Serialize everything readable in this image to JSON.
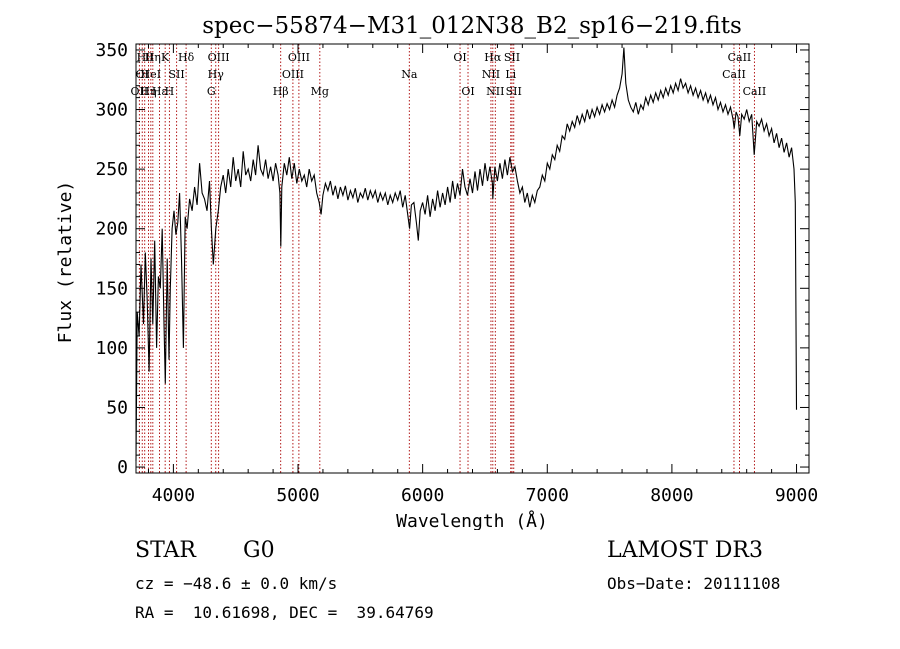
{
  "chart_data": {
    "type": "line",
    "title": "spec−55874−M31_012N38_B2_sp16−219.fits",
    "xlabel": "Wavelength (Å)",
    "ylabel": "Flux (relative)",
    "xlim": [
      3700,
      9100
    ],
    "ylim": [
      -5,
      355
    ],
    "xticks": [
      4000,
      5000,
      6000,
      7000,
      8000,
      9000
    ],
    "yticks": [
      0,
      50,
      100,
      150,
      200,
      250,
      300,
      350
    ],
    "series": [
      {
        "name": "spectrum",
        "color": "#000000",
        "points": [
          [
            3700,
            5
          ],
          [
            3710,
            130
          ],
          [
            3725,
            110
          ],
          [
            3740,
            170
          ],
          [
            3760,
            120
          ],
          [
            3775,
            180
          ],
          [
            3790,
            140
          ],
          [
            3805,
            80
          ],
          [
            3820,
            175
          ],
          [
            3835,
            120
          ],
          [
            3850,
            190
          ],
          [
            3865,
            100
          ],
          [
            3880,
            160
          ],
          [
            3895,
            150
          ],
          [
            3910,
            200
          ],
          [
            3925,
            120
          ],
          [
            3935,
            70
          ],
          [
            3950,
            175
          ],
          [
            3965,
            90
          ],
          [
            3975,
            150
          ],
          [
            3990,
            200
          ],
          [
            4005,
            215
          ],
          [
            4020,
            195
          ],
          [
            4035,
            205
          ],
          [
            4050,
            230
          ],
          [
            4065,
            175
          ],
          [
            4080,
            100
          ],
          [
            4095,
            210
          ],
          [
            4110,
            200
          ],
          [
            4130,
            225
          ],
          [
            4150,
            215
          ],
          [
            4170,
            235
          ],
          [
            4190,
            220
          ],
          [
            4210,
            255
          ],
          [
            4230,
            230
          ],
          [
            4250,
            225
          ],
          [
            4270,
            215
          ],
          [
            4290,
            240
          ],
          [
            4305,
            200
          ],
          [
            4320,
            170
          ],
          [
            4340,
            200
          ],
          [
            4360,
            215
          ],
          [
            4380,
            235
          ],
          [
            4400,
            245
          ],
          [
            4420,
            230
          ],
          [
            4440,
            250
          ],
          [
            4460,
            235
          ],
          [
            4480,
            260
          ],
          [
            4500,
            240
          ],
          [
            4520,
            250
          ],
          [
            4540,
            235
          ],
          [
            4560,
            265
          ],
          [
            4580,
            245
          ],
          [
            4600,
            250
          ],
          [
            4620,
            240
          ],
          [
            4640,
            258
          ],
          [
            4660,
            245
          ],
          [
            4680,
            270
          ],
          [
            4700,
            250
          ],
          [
            4720,
            245
          ],
          [
            4740,
            258
          ],
          [
            4760,
            242
          ],
          [
            4780,
            252
          ],
          [
            4800,
            240
          ],
          [
            4820,
            255
          ],
          [
            4840,
            245
          ],
          [
            4855,
            230
          ],
          [
            4862,
            185
          ],
          [
            4870,
            235
          ],
          [
            4890,
            255
          ],
          [
            4910,
            245
          ],
          [
            4930,
            260
          ],
          [
            4950,
            242
          ],
          [
            4970,
            255
          ],
          [
            4990,
            238
          ],
          [
            5010,
            250
          ],
          [
            5030,
            240
          ],
          [
            5050,
            245
          ],
          [
            5070,
            235
          ],
          [
            5090,
            250
          ],
          [
            5110,
            240
          ],
          [
            5130,
            245
          ],
          [
            5150,
            230
          ],
          [
            5170,
            222
          ],
          [
            5185,
            212
          ],
          [
            5200,
            228
          ],
          [
            5220,
            238
          ],
          [
            5240,
            232
          ],
          [
            5260,
            240
          ],
          [
            5280,
            228
          ],
          [
            5300,
            236
          ],
          [
            5320,
            225
          ],
          [
            5340,
            235
          ],
          [
            5360,
            228
          ],
          [
            5380,
            236
          ],
          [
            5400,
            224
          ],
          [
            5420,
            232
          ],
          [
            5440,
            226
          ],
          [
            5460,
            234
          ],
          [
            5480,
            222
          ],
          [
            5500,
            230
          ],
          [
            5520,
            226
          ],
          [
            5540,
            234
          ],
          [
            5560,
            224
          ],
          [
            5580,
            232
          ],
          [
            5600,
            226
          ],
          [
            5620,
            232
          ],
          [
            5640,
            222
          ],
          [
            5660,
            230
          ],
          [
            5680,
            224
          ],
          [
            5700,
            230
          ],
          [
            5720,
            220
          ],
          [
            5740,
            228
          ],
          [
            5760,
            222
          ],
          [
            5780,
            230
          ],
          [
            5800,
            224
          ],
          [
            5820,
            232
          ],
          [
            5840,
            218
          ],
          [
            5860,
            228
          ],
          [
            5880,
            212
          ],
          [
            5895,
            200
          ],
          [
            5910,
            220
          ],
          [
            5930,
            222
          ],
          [
            5950,
            205
          ],
          [
            5965,
            190
          ],
          [
            5980,
            215
          ],
          [
            6000,
            222
          ],
          [
            6020,
            212
          ],
          [
            6040,
            228
          ],
          [
            6060,
            210
          ],
          [
            6080,
            225
          ],
          [
            6100,
            215
          ],
          [
            6120,
            232
          ],
          [
            6140,
            218
          ],
          [
            6160,
            230
          ],
          [
            6180,
            220
          ],
          [
            6200,
            235
          ],
          [
            6220,
            222
          ],
          [
            6240,
            240
          ],
          [
            6260,
            225
          ],
          [
            6280,
            238
          ],
          [
            6300,
            228
          ],
          [
            6320,
            250
          ],
          [
            6340,
            235
          ],
          [
            6360,
            228
          ],
          [
            6380,
            242
          ],
          [
            6400,
            230
          ],
          [
            6420,
            248
          ],
          [
            6440,
            232
          ],
          [
            6460,
            250
          ],
          [
            6480,
            236
          ],
          [
            6500,
            255
          ],
          [
            6520,
            240
          ],
          [
            6540,
            252
          ],
          [
            6560,
            238
          ],
          [
            6563,
            225
          ],
          [
            6580,
            252
          ],
          [
            6600,
            240
          ],
          [
            6620,
            255
          ],
          [
            6640,
            242
          ],
          [
            6660,
            258
          ],
          [
            6680,
            245
          ],
          [
            6700,
            260
          ],
          [
            6720,
            248
          ],
          [
            6740,
            252
          ],
          [
            6760,
            240
          ],
          [
            6780,
            230
          ],
          [
            6800,
            235
          ],
          [
            6820,
            222
          ],
          [
            6840,
            230
          ],
          [
            6860,
            218
          ],
          [
            6880,
            228
          ],
          [
            6900,
            222
          ],
          [
            6920,
            232
          ],
          [
            6940,
            235
          ],
          [
            6960,
            245
          ],
          [
            6980,
            240
          ],
          [
            7000,
            255
          ],
          [
            7020,
            250
          ],
          [
            7040,
            262
          ],
          [
            7060,
            258
          ],
          [
            7080,
            270
          ],
          [
            7100,
            265
          ],
          [
            7120,
            278
          ],
          [
            7140,
            275
          ],
          [
            7160,
            288
          ],
          [
            7180,
            282
          ],
          [
            7200,
            290
          ],
          [
            7220,
            285
          ],
          [
            7240,
            295
          ],
          [
            7260,
            288
          ],
          [
            7280,
            296
          ],
          [
            7300,
            290
          ],
          [
            7320,
            300
          ],
          [
            7340,
            292
          ],
          [
            7360,
            300
          ],
          [
            7380,
            294
          ],
          [
            7400,
            302
          ],
          [
            7420,
            296
          ],
          [
            7440,
            304
          ],
          [
            7460,
            298
          ],
          [
            7480,
            305
          ],
          [
            7500,
            300
          ],
          [
            7520,
            308
          ],
          [
            7540,
            302
          ],
          [
            7560,
            312
          ],
          [
            7580,
            318
          ],
          [
            7600,
            330
          ],
          [
            7615,
            352
          ],
          [
            7630,
            322
          ],
          [
            7650,
            308
          ],
          [
            7670,
            302
          ],
          [
            7690,
            298
          ],
          [
            7710,
            306
          ],
          [
            7730,
            296
          ],
          [
            7750,
            304
          ],
          [
            7770,
            300
          ],
          [
            7790,
            310
          ],
          [
            7810,
            304
          ],
          [
            7830,
            312
          ],
          [
            7850,
            306
          ],
          [
            7870,
            314
          ],
          [
            7890,
            308
          ],
          [
            7910,
            316
          ],
          [
            7930,
            310
          ],
          [
            7950,
            318
          ],
          [
            7970,
            312
          ],
          [
            7990,
            320
          ],
          [
            8010,
            314
          ],
          [
            8030,
            322
          ],
          [
            8050,
            316
          ],
          [
            8070,
            326
          ],
          [
            8090,
            318
          ],
          [
            8110,
            322
          ],
          [
            8130,
            314
          ],
          [
            8150,
            320
          ],
          [
            8170,
            312
          ],
          [
            8190,
            318
          ],
          [
            8210,
            310
          ],
          [
            8230,
            316
          ],
          [
            8250,
            308
          ],
          [
            8270,
            314
          ],
          [
            8290,
            306
          ],
          [
            8310,
            312
          ],
          [
            8330,
            304
          ],
          [
            8350,
            310
          ],
          [
            8370,
            300
          ],
          [
            8390,
            306
          ],
          [
            8410,
            298
          ],
          [
            8430,
            304
          ],
          [
            8450,
            296
          ],
          [
            8470,
            302
          ],
          [
            8490,
            292
          ],
          [
            8500,
            284
          ],
          [
            8515,
            298
          ],
          [
            8530,
            294
          ],
          [
            8545,
            278
          ],
          [
            8560,
            296
          ],
          [
            8580,
            292
          ],
          [
            8600,
            300
          ],
          [
            8620,
            290
          ],
          [
            8640,
            296
          ],
          [
            8660,
            262
          ],
          [
            8680,
            290
          ],
          [
            8700,
            286
          ],
          [
            8720,
            292
          ],
          [
            8740,
            282
          ],
          [
            8760,
            288
          ],
          [
            8780,
            278
          ],
          [
            8800,
            284
          ],
          [
            8820,
            272
          ],
          [
            8840,
            280
          ],
          [
            8860,
            268
          ],
          [
            8880,
            276
          ],
          [
            8900,
            264
          ],
          [
            8920,
            272
          ],
          [
            8940,
            260
          ],
          [
            8960,
            268
          ],
          [
            8980,
            250
          ],
          [
            8990,
            222
          ],
          [
            9000,
            48
          ]
        ]
      }
    ],
    "lines": [
      {
        "wl": 3727,
        "label": "OII",
        "row": 2
      },
      {
        "wl": 3750,
        "label": "OI",
        "row": 1
      },
      {
        "wl": 3770,
        "label": "Hθ",
        "row": 0
      },
      {
        "wl": 3800,
        "label": "Hη",
        "row": 2
      },
      {
        "wl": 3819,
        "label": "HeI",
        "row": 1
      },
      {
        "wl": 3835,
        "label": "Hη",
        "row": 0
      },
      {
        "wl": 3889,
        "label": "Hε",
        "row": 2
      },
      {
        "wl": 3934,
        "label": "K",
        "row": 0
      },
      {
        "wl": 3968,
        "label": "H",
        "row": 2
      },
      {
        "wl": 4026,
        "label": "SII",
        "row": 1
      },
      {
        "wl": 4102,
        "label": "Hδ",
        "row": 0
      },
      {
        "wl": 4304,
        "label": "G",
        "row": 2
      },
      {
        "wl": 4340,
        "label": "Hγ",
        "row": 1
      },
      {
        "wl": 4363,
        "label": "OIII",
        "row": 0
      },
      {
        "wl": 4861,
        "label": "Hβ",
        "row": 2
      },
      {
        "wl": 4959,
        "label": "OIII",
        "row": 1
      },
      {
        "wl": 5007,
        "label": "OIII",
        "row": 0
      },
      {
        "wl": 5175,
        "label": "Mg",
        "row": 2
      },
      {
        "wl": 5893,
        "label": "Na",
        "row": 1
      },
      {
        "wl": 6300,
        "label": "OI",
        "row": 0
      },
      {
        "wl": 6364,
        "label": "OI",
        "row": 2
      },
      {
        "wl": 6548,
        "label": "NII",
        "row": 1
      },
      {
        "wl": 6563,
        "label": "Hα",
        "row": 0
      },
      {
        "wl": 6583,
        "label": "NII",
        "row": 2
      },
      {
        "wl": 6707,
        "label": "Li",
        "row": 1
      },
      {
        "wl": 6717,
        "label": "SII",
        "row": 0
      },
      {
        "wl": 6731,
        "label": "SII",
        "row": 2
      },
      {
        "wl": 8498,
        "label": "CaII",
        "row": 1
      },
      {
        "wl": 8542,
        "label": "CaII",
        "row": 0
      },
      {
        "wl": 8662,
        "label": "CaII",
        "row": 2
      }
    ]
  },
  "footer": {
    "class_label": "STAR",
    "subclass": "G0",
    "survey": "LAMOST DR3",
    "redshift": "cz = −48.6 ± 0.0 km/s",
    "obs_date": "Obs−Date: 20111108",
    "coords": "RA =  10.61698, DEC =  39.64769"
  },
  "colors": {
    "spectrum": "#000000",
    "line_marker": "#aa0000",
    "axes": "#000000"
  }
}
